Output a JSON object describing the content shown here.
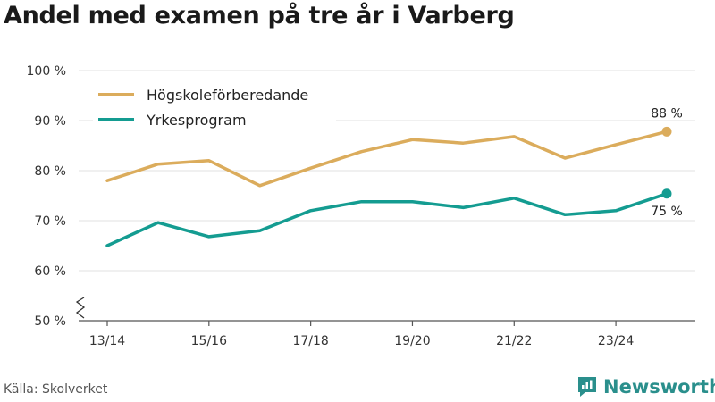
{
  "chart_data": {
    "type": "line",
    "title": "Andel med examen på tre år i Varberg",
    "xlabel": "",
    "ylabel": "",
    "ylim": [
      50,
      100
    ],
    "yticks": [
      50,
      60,
      70,
      80,
      90,
      100
    ],
    "ytick_labels": [
      "50 %",
      "60 %",
      "70 %",
      "80 %",
      "90 %",
      "100 %"
    ],
    "x_tick_labels": [
      "13/14",
      "15/16",
      "17/18",
      "19/20",
      "21/22",
      "23/24"
    ],
    "x_tick_indices": [
      0,
      2,
      4,
      6,
      8,
      10
    ],
    "categories": [
      "13/14",
      "14/15",
      "15/16",
      "16/17",
      "17/18",
      "18/19",
      "19/20",
      "20/21",
      "21/22",
      "22/23",
      "23/24",
      "24/25"
    ],
    "legend_position": "top-left",
    "series": [
      {
        "name": "Högskoleförberedande",
        "color": "#dbac5c",
        "values": [
          78,
          81.3,
          82,
          77,
          80.5,
          83.8,
          86.2,
          85.5,
          86.8,
          82.5,
          85.2,
          87.8
        ],
        "end_label": "88 %"
      },
      {
        "name": "Yrkesprogram",
        "color": "#149c91",
        "values": [
          65,
          69.6,
          66.8,
          68,
          72,
          73.8,
          73.8,
          72.6,
          74.5,
          71.2,
          72,
          75.4
        ],
        "end_label": "75 %"
      }
    ]
  },
  "footer": {
    "source": "Källa: Skolverket",
    "brand": "Newsworthy",
    "brand_icon": "newsworthy-logo-icon",
    "brand_color": "#2a8f8c"
  }
}
